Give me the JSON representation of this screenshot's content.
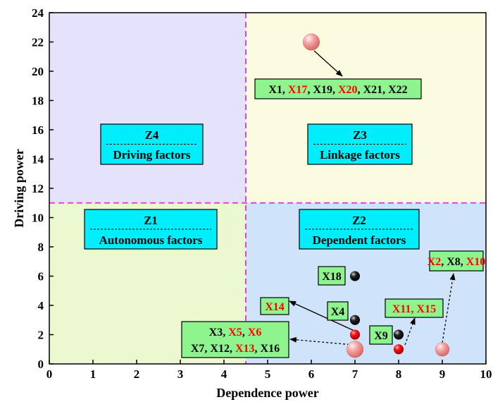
{
  "chart_data": {
    "type": "scatter",
    "xlabel": "Dependence power",
    "ylabel": "Driving power",
    "xlim": [
      0,
      10
    ],
    "ylim": [
      0,
      24
    ],
    "xticks": [
      0,
      1,
      2,
      3,
      4,
      5,
      6,
      7,
      8,
      9,
      10
    ],
    "yticks": [
      0,
      2,
      4,
      6,
      8,
      10,
      12,
      14,
      16,
      18,
      20,
      22,
      24
    ],
    "divider": {
      "x": 4.5,
      "y": 11
    },
    "zones": [
      {
        "id": "Z1",
        "title": "Z1",
        "subtitle": "Autonomous factors",
        "color": "#ecf8cf"
      },
      {
        "id": "Z2",
        "title": "Z2",
        "subtitle": "Dependent factors",
        "color": "#cfe3fa"
      },
      {
        "id": "Z3",
        "title": "Z3",
        "subtitle": "Linkage factors",
        "color": "#fbfbdf"
      },
      {
        "id": "Z4",
        "title": "Z4",
        "subtitle": "Driving factors",
        "color": "#e5e3fb"
      }
    ],
    "points": [
      {
        "x": 6,
        "y": 22,
        "style": "pink",
        "size": "large"
      },
      {
        "x": 7,
        "y": 6,
        "style": "black",
        "size": "small"
      },
      {
        "x": 7,
        "y": 3,
        "style": "black",
        "size": "small"
      },
      {
        "x": 7,
        "y": 2,
        "style": "red",
        "size": "small"
      },
      {
        "x": 7,
        "y": 1,
        "style": "pink",
        "size": "large"
      },
      {
        "x": 8,
        "y": 2,
        "style": "black",
        "size": "small"
      },
      {
        "x": 8,
        "y": 1,
        "style": "red",
        "size": "small"
      },
      {
        "x": 9,
        "y": 1,
        "style": "pink",
        "size": "medium"
      }
    ],
    "annotations": [
      {
        "lines": [
          [
            {
              "t": "X1",
              "c": "black"
            },
            {
              "t": ", ",
              "c": "black"
            },
            {
              "t": "X17",
              "c": "red"
            },
            {
              "t": ", X19, ",
              "c": "black"
            },
            {
              "t": "X20",
              "c": "red"
            },
            {
              "t": ", X21, X22",
              "c": "black"
            }
          ]
        ]
      },
      {
        "lines": [
          [
            {
              "t": "X18",
              "c": "black"
            }
          ]
        ]
      },
      {
        "lines": [
          [
            {
              "t": "X4",
              "c": "black"
            }
          ]
        ]
      },
      {
        "lines": [
          [
            {
              "t": "X14",
              "c": "red"
            }
          ]
        ]
      },
      {
        "lines": [
          [
            {
              "t": "X9",
              "c": "black"
            }
          ]
        ]
      },
      {
        "lines": [
          [
            {
              "t": "X11",
              "c": "red"
            },
            {
              "t": ", ",
              "c": "red"
            },
            {
              "t": "X15",
              "c": "red"
            }
          ]
        ]
      },
      {
        "lines": [
          [
            {
              "t": "X2",
              "c": "red"
            },
            {
              "t": ", X8, ",
              "c": "black"
            },
            {
              "t": "X10",
              "c": "red"
            }
          ]
        ]
      },
      {
        "lines": [
          [
            {
              "t": "X3, ",
              "c": "black"
            },
            {
              "t": "X5",
              "c": "red"
            },
            {
              "t": ", ",
              "c": "black"
            },
            {
              "t": "X6",
              "c": "red"
            }
          ],
          [
            {
              "t": "X7, X12, ",
              "c": "black"
            },
            {
              "t": "X13",
              "c": "red"
            },
            {
              "t": ", X16",
              "c": "black"
            }
          ]
        ]
      }
    ]
  },
  "colors": {
    "divider": "#e040e8",
    "zone_label_bg": "#00eefc",
    "annotation_bg": "#8ef58e",
    "arrow": "#000000",
    "red_text": "#ff0000"
  }
}
